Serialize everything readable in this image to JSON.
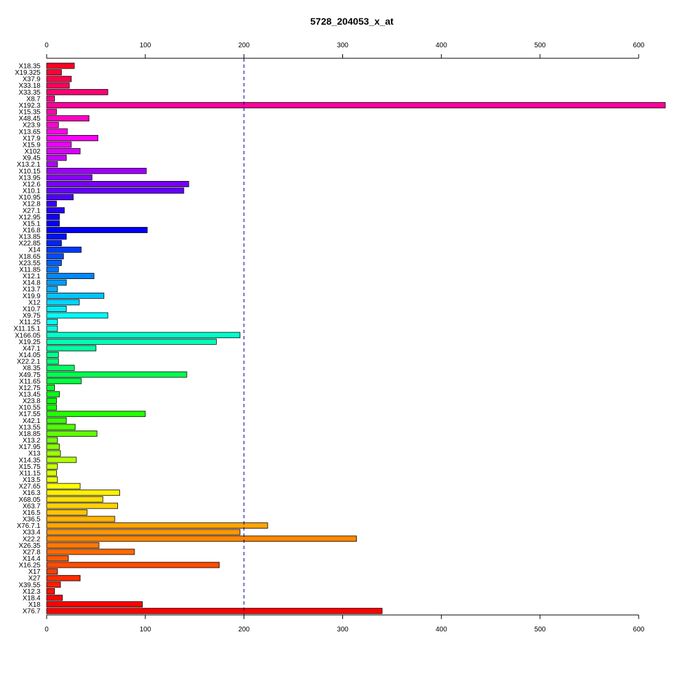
{
  "chart_data": {
    "type": "bar",
    "orientation": "horizontal",
    "title": "5728_204053_x_at",
    "xlabel": "",
    "ylabel": "",
    "xlim": [
      0,
      600
    ],
    "x_ticks": [
      0,
      100,
      200,
      300,
      400,
      500,
      600
    ],
    "axes_top_and_bottom": true,
    "reference_line": {
      "value": 200,
      "style": "dashed",
      "color": "#00008B"
    },
    "grid": false,
    "legend": "none",
    "categories": [
      "X18.35",
      "X19.325",
      "X37.9",
      "X33.18",
      "X33.35",
      "X8.7",
      "X192.3",
      "X15.35",
      "X48.45",
      "X23.9",
      "X13.65",
      "X17.9",
      "X15.9",
      "X102",
      "X9.45",
      "X13.2.1",
      "X10.15",
      "X13.95",
      "X12.6",
      "X10.1",
      "X10.95",
      "X12.8",
      "X27.1",
      "X12.95",
      "X15.1",
      "X16.8",
      "X13.85",
      "X22.85",
      "X14",
      "X18.65",
      "X23.55",
      "X11.85",
      "X12.1",
      "X14.8",
      "X13.7",
      "X19.9",
      "X12",
      "X10.7",
      "X9.75",
      "X11.25",
      "X11.15.1",
      "X166.05",
      "X19.25",
      "X47.1",
      "X14.05",
      "X22.2.1",
      "X8.35",
      "X49.75",
      "X11.65",
      "X12.75",
      "X13.45",
      "X23.8",
      "X10.55",
      "X17.55",
      "X42.1",
      "X13.55",
      "X18.85",
      "X13.2",
      "X17.95",
      "X13",
      "X14.35",
      "X15.75",
      "X11.15",
      "X13.5",
      "X27.65",
      "X16.3",
      "X68.05",
      "X63.7",
      "X16.5",
      "X36.5",
      "X76.7.1",
      "X33.4",
      "X22.2",
      "X26.35",
      "X27.8",
      "X14.4",
      "X16.25",
      "X17",
      "X27",
      "X39.55",
      "X12.3",
      "X18.4",
      "X18",
      "X76.7"
    ],
    "values": [
      28,
      15,
      25,
      23,
      62,
      8,
      627,
      10,
      43,
      12,
      21,
      52,
      25,
      34,
      20,
      11,
      101,
      46,
      144,
      139,
      27,
      10,
      18,
      13,
      13,
      102,
      20,
      15,
      35,
      17,
      15,
      12,
      48,
      20,
      11,
      58,
      33,
      20,
      62,
      11,
      11,
      196,
      172,
      50,
      12,
      12,
      28,
      142,
      35,
      8,
      13,
      10,
      10,
      100,
      20,
      29,
      51,
      11,
      13,
      14,
      30,
      11,
      10,
      11,
      34,
      74,
      57,
      72,
      41,
      69,
      224,
      196,
      314,
      53,
      89,
      22,
      175,
      11,
      34,
      14,
      8,
      16,
      97,
      340
    ],
    "colors": [
      "#ff0022",
      "#ff0036",
      "#ff004a",
      "#ff005e",
      "#ff0072",
      "#ff0086",
      "#ff0099",
      "#ff00ad",
      "#ff00c1",
      "#ff00d5",
      "#ff00e9",
      "#ff00fd",
      "#ee00ff",
      "#da00ff",
      "#c600ff",
      "#b200ff",
      "#9e00ff",
      "#8a00ff",
      "#7600ff",
      "#6300ff",
      "#4f00ff",
      "#3b00ff",
      "#2700ff",
      "#1300ff",
      "#0000ff",
      "#0000ff",
      "#0010ff",
      "#0024ff",
      "#0038ff",
      "#004cff",
      "#0060ff",
      "#0074ff",
      "#0088ff",
      "#009cff",
      "#00afff",
      "#00c3ff",
      "#00d7ff",
      "#00ebff",
      "#00ffff",
      "#00fff3",
      "#00ffde",
      "#00ffca",
      "#00ffb6",
      "#00ffa2",
      "#00ff8e",
      "#00ff7a",
      "#00ff66",
      "#00ff52",
      "#00ff3e",
      "#00ff2b",
      "#00ff17",
      "#00ff03",
      "#10ff00",
      "#24ff00",
      "#38ff00",
      "#4cff00",
      "#60ff00",
      "#74ff00",
      "#88ff00",
      "#9cff00",
      "#b0ff00",
      "#c4ff00",
      "#d8ff00",
      "#ebff00",
      "#ffff00",
      "#fff000",
      "#ffe100",
      "#ffd200",
      "#ffc300",
      "#ffb400",
      "#ffa500",
      "#ff9600",
      "#ff8700",
      "#ff7800",
      "#ff6900",
      "#ff5a00",
      "#ff4b00",
      "#ff3c00",
      "#ff2d00",
      "#ff1e00",
      "#ff0f00",
      "#ff0000",
      "#ff0000",
      "#ff0000"
    ]
  }
}
